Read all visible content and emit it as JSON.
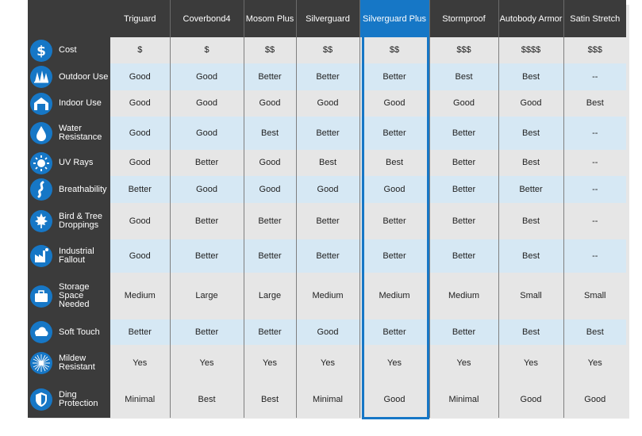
{
  "columns": [
    {
      "label": "Triguard"
    },
    {
      "label": "Coverbond4"
    },
    {
      "label": "Mosom Plus"
    },
    {
      "label": "Silverguard"
    },
    {
      "label": "Silverguard Plus",
      "highlight": true
    },
    {
      "label": "Stormproof"
    },
    {
      "label": "Autobody Armor"
    },
    {
      "label": "Satin Stretch"
    }
  ],
  "highlight_color": "#1677c6",
  "rows": [
    {
      "label": "Cost",
      "icon": "dollar-icon",
      "values": [
        "$",
        "$",
        "$$",
        "$$",
        "$$",
        "$$$",
        "$$$$",
        "$$$"
      ]
    },
    {
      "label": "Outdoor Use",
      "icon": "trees-icon",
      "values": [
        "Good",
        "Good",
        "Better",
        "Better",
        "Better",
        "Best",
        "Best",
        "--"
      ]
    },
    {
      "label": "Indoor Use",
      "icon": "garage-icon",
      "values": [
        "Good",
        "Good",
        "Good",
        "Good",
        "Good",
        "Good",
        "Good",
        "Best"
      ]
    },
    {
      "label": "Water Resistance",
      "icon": "water-drop-icon",
      "values": [
        "Good",
        "Good",
        "Best",
        "Better",
        "Better",
        "Better",
        "Best",
        "--"
      ]
    },
    {
      "label": "UV Rays",
      "icon": "sun-icon",
      "values": [
        "Good",
        "Better",
        "Good",
        "Best",
        "Best",
        "Better",
        "Best",
        "--"
      ]
    },
    {
      "label": "Breathability",
      "icon": "breathability-icon",
      "values": [
        "Better",
        "Good",
        "Good",
        "Good",
        "Good",
        "Better",
        "Better",
        "--"
      ]
    },
    {
      "label": "Bird & Tree Droppings",
      "icon": "leaf-icon",
      "values": [
        "Good",
        "Better",
        "Better",
        "Better",
        "Better",
        "Better",
        "Best",
        "--"
      ]
    },
    {
      "label": "Industrial Fallout",
      "icon": "factory-icon",
      "values": [
        "Good",
        "Better",
        "Better",
        "Better",
        "Better",
        "Better",
        "Best",
        "--"
      ]
    },
    {
      "label": "Storage Space Needed",
      "icon": "briefcase-icon",
      "values": [
        "Medium",
        "Large",
        "Large",
        "Medium",
        "Medium",
        "Medium",
        "Small",
        "Small"
      ]
    },
    {
      "label": "Soft Touch",
      "icon": "cloud-icon",
      "values": [
        "Better",
        "Better",
        "Better",
        "Good",
        "Better",
        "Better",
        "Best",
        "Best"
      ]
    },
    {
      "label": "Mildew Resistant",
      "icon": "mildew-icon",
      "values": [
        "Yes",
        "Yes",
        "Yes",
        "Yes",
        "Yes",
        "Yes",
        "Yes",
        "Yes"
      ]
    },
    {
      "label": "Ding Protection",
      "icon": "shield-icon",
      "values": [
        "Minimal",
        "Best",
        "Best",
        "Minimal",
        "Good",
        "Minimal",
        "Good",
        "Good"
      ]
    }
  ]
}
